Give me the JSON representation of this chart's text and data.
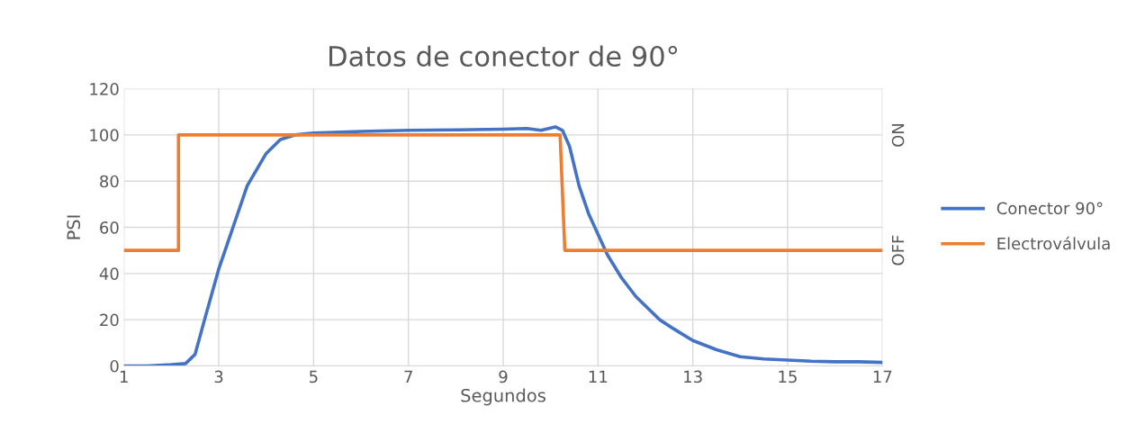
{
  "chart_data": {
    "type": "line",
    "title": "Datos de conector de 90°",
    "xlabel": "Segundos",
    "ylabel": "PSI",
    "xlim": [
      1,
      17
    ],
    "xticks": [
      1,
      3,
      5,
      7,
      9,
      11,
      13,
      15,
      17
    ],
    "ylim": [
      0,
      120
    ],
    "yticks": [
      0,
      20,
      40,
      60,
      80,
      100,
      120
    ],
    "annotations": [
      "ON",
      "OFF"
    ],
    "grid": true,
    "legend": "right",
    "marker": "none",
    "line_style": "solid",
    "series": [
      {
        "name": "Conector 90°",
        "color": "#4472c4",
        "x": [
          1,
          1.5,
          2,
          2.3,
          2.5,
          2.7,
          3,
          3.3,
          3.6,
          4,
          4.3,
          4.6,
          5,
          6,
          7,
          8,
          9,
          9.5,
          9.8,
          10.1,
          10.25,
          10.4,
          10.6,
          10.8,
          11,
          11.2,
          11.5,
          11.8,
          12,
          12.3,
          12.6,
          13,
          13.5,
          14,
          14.5,
          15,
          15.5,
          16,
          16.5,
          17
        ],
        "values": [
          0,
          0,
          0.5,
          1,
          5,
          20,
          42,
          60,
          78,
          92,
          98,
          100,
          100.8,
          101.5,
          102,
          102.2,
          102.5,
          102.8,
          102,
          103.5,
          102,
          95,
          78,
          66,
          57,
          48,
          38,
          30,
          26,
          20,
          16,
          11,
          7,
          4,
          3,
          2.5,
          2,
          1.8,
          1.8,
          1.5
        ]
      },
      {
        "name": "Electroválvula",
        "color": "#ed7d31",
        "x": [
          1,
          2.15,
          2.15,
          10.2,
          10.3,
          17
        ],
        "values": [
          50,
          50,
          100,
          100,
          50,
          50
        ]
      }
    ]
  }
}
